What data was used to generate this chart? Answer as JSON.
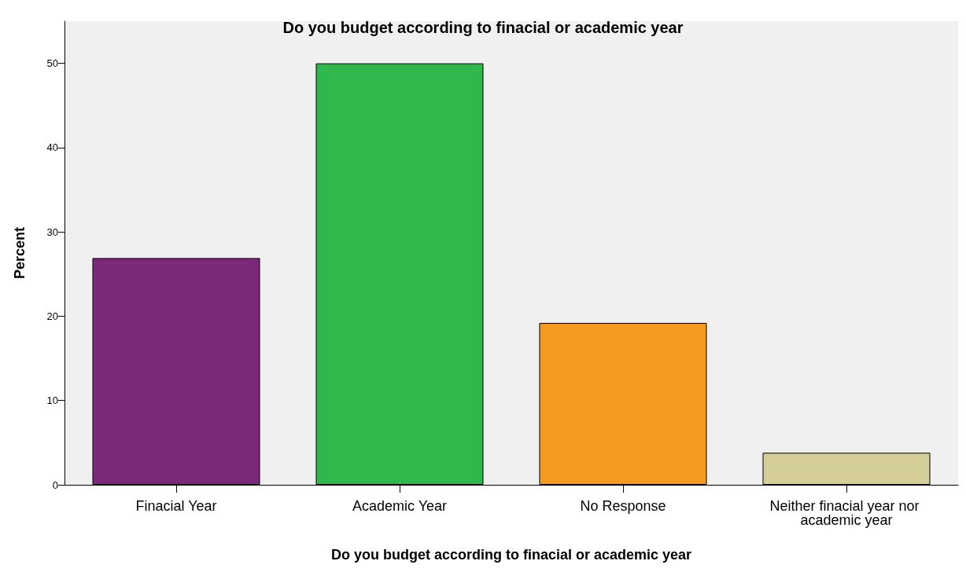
{
  "chart_data": {
    "type": "bar",
    "title": "Do you budget according to finacial or academic year",
    "xlabel": "Do you budget according to finacial or academic year",
    "ylabel": "Percent",
    "categories": [
      "Finacial Year",
      "Academic Year",
      "No Response",
      "Neither finacial year nor academic year"
    ],
    "values": [
      26.9,
      50.0,
      19.2,
      3.8
    ],
    "colors": [
      "#7b2a7a",
      "#2fb84b",
      "#f79a21",
      "#d4cf98"
    ],
    "ylim": [
      0,
      55
    ],
    "yticks": [
      0,
      10,
      20,
      30,
      40,
      50
    ],
    "grid": false
  }
}
